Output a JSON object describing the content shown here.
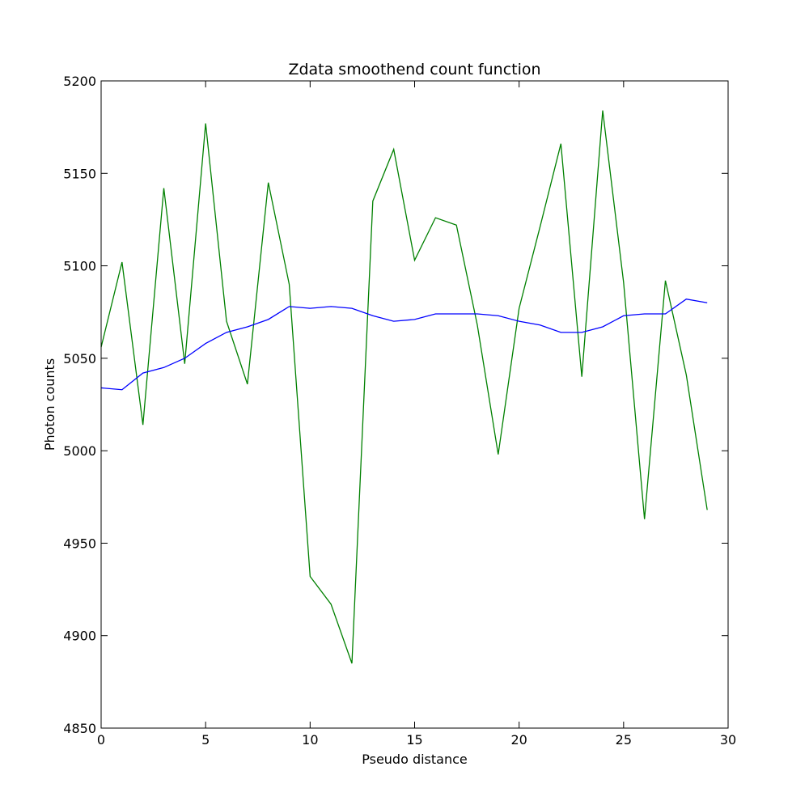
{
  "chart_data": {
    "type": "line",
    "title": "Zdata smoothend count function",
    "xlabel": "Pseudo distance",
    "ylabel": "Photon counts",
    "xlim": [
      0,
      30
    ],
    "ylim": [
      4850,
      5200
    ],
    "xticks": [
      0,
      5,
      10,
      15,
      20,
      25,
      30
    ],
    "yticks": [
      4850,
      4900,
      4950,
      5000,
      5050,
      5100,
      5150,
      5200
    ],
    "grid": false,
    "x": [
      0,
      1,
      2,
      3,
      4,
      5,
      6,
      7,
      8,
      9,
      10,
      11,
      12,
      13,
      14,
      15,
      16,
      17,
      18,
      19,
      20,
      21,
      22,
      23,
      24,
      25,
      26,
      27,
      28,
      29
    ],
    "series": [
      {
        "color": "#008000",
        "values": [
          5056,
          5102,
          5014,
          5142,
          5047,
          5177,
          5070,
          5036,
          5145,
          5090,
          4932,
          4917,
          4885,
          5135,
          5163,
          5103,
          5126,
          5122,
          5068,
          4998,
          5077,
          5121,
          5166,
          5040,
          5184,
          5091,
          4963,
          5092,
          5041,
          4968
        ]
      },
      {
        "color": "#0000ff",
        "values": [
          5034,
          5033,
          5042,
          5045,
          5050,
          5058,
          5064,
          5067,
          5071,
          5078,
          5077,
          5078,
          5077,
          5073,
          5070,
          5071,
          5074,
          5074,
          5074,
          5073,
          5070,
          5068,
          5064,
          5064,
          5067,
          5073,
          5074,
          5074,
          5082,
          5080
        ]
      }
    ]
  }
}
